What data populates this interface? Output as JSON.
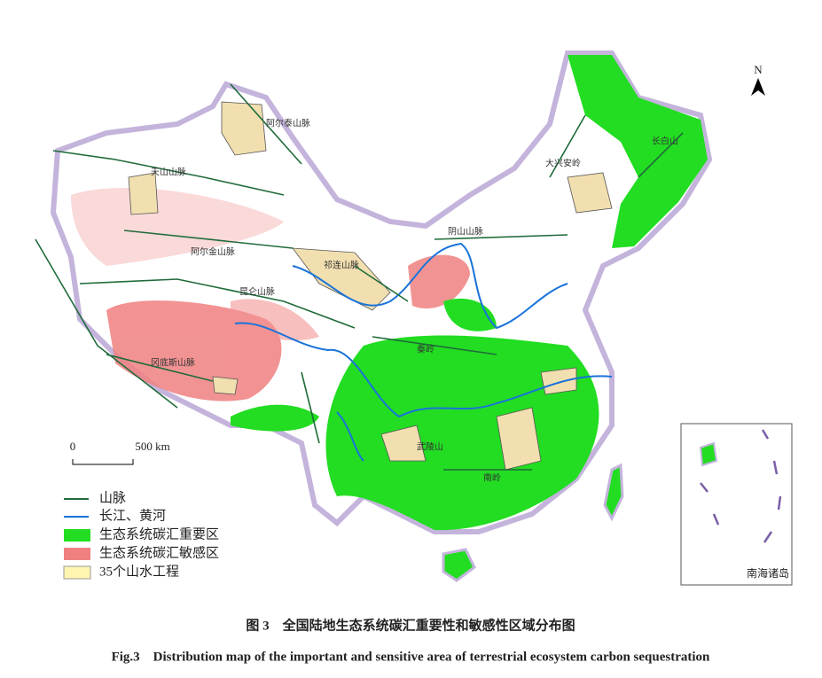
{
  "map": {
    "north": "N",
    "scale": {
      "zero": "0",
      "length": "500 km"
    },
    "legend": [
      "山脉",
      "长江、黄河",
      "生态系统碳汇重要区",
      "生态系统碳汇敏感区",
      "35个山水工程"
    ],
    "inset_label": "南海诸岛",
    "mountain_labels": [
      "阿尔泰山脉",
      "天山山脉",
      "阿尔金山脉",
      "昆仑山脉",
      "冈底斯山脉",
      "祁连山脉",
      "阴山山脉",
      "大兴安岭",
      "长白山",
      "秦岭",
      "南岭",
      "武陵山"
    ]
  },
  "caption": {
    "cn": "图 3　全国陆地生态系统碳汇重要性和敏感性区域分布图",
    "en": "Fig.3　Distribution map of the important and sensitive area of terrestrial ecosystem carbon sequestration"
  }
}
